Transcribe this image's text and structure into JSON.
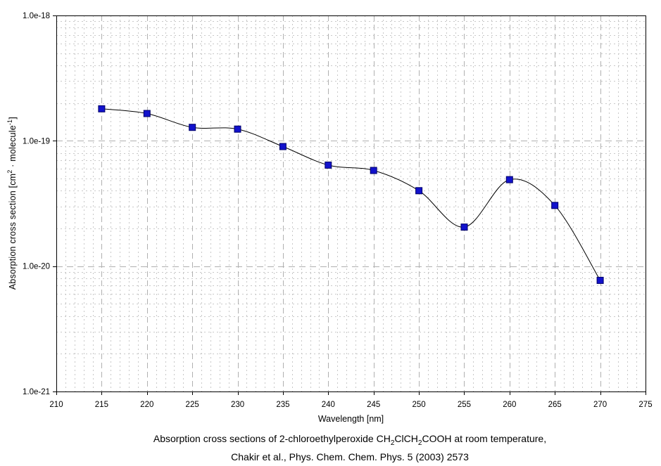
{
  "chart_data": {
    "type": "line",
    "title": "",
    "xlabel": "Wavelength [nm]",
    "ylabel_text": "Absorption cross section [cm2 · molecule-1]",
    "ylabel_segments": [
      {
        "t": "text",
        "v": "Absorption cross section [cm"
      },
      {
        "t": "sup",
        "v": "2"
      },
      {
        "t": "text",
        "v": " · molecule"
      },
      {
        "t": "sup",
        "v": "-1"
      },
      {
        "t": "text",
        "v": "]"
      }
    ],
    "x": [
      215,
      220,
      225,
      230,
      235,
      240,
      245,
      250,
      255,
      260,
      265,
      270
    ],
    "values": [
      1.8e-19,
      1.65e-19,
      1.28e-19,
      1.24e-19,
      9e-20,
      6.4e-20,
      5.8e-20,
      4e-20,
      2.05e-20,
      4.9e-20,
      3.05e-20,
      7.7e-21
    ],
    "xlim": [
      210,
      275
    ],
    "x_tick_step": 5,
    "x_tick_labels": [
      "210",
      "215",
      "220",
      "225",
      "230",
      "235",
      "240",
      "245",
      "250",
      "255",
      "260",
      "265",
      "270",
      "275"
    ],
    "ylim": [
      1e-21,
      1e-18
    ],
    "y_scale": "log",
    "y_ticks": [
      {
        "v": 1e-18,
        "label": "1.0e-18"
      },
      {
        "v": 1e-19,
        "label": "1.0e-19"
      },
      {
        "v": 1e-20,
        "label": "1.0e-20"
      },
      {
        "v": 1e-21,
        "label": "1.0e-21"
      }
    ],
    "grid": {
      "major": "dashed",
      "minor": "dotted",
      "major_color": "#b0b0b0",
      "minor_color": "#c8c8c8"
    },
    "legend": "none",
    "marker": "square",
    "marker_color": "#1212cc",
    "marker_edge_color": "#000066",
    "line_color": "#000000",
    "axis_color": "#000000"
  },
  "caption": {
    "line1_text": "Absorption cross sections of 2-chloroethylperoxide CH2ClCH2COOH at room temperature,",
    "line1_segments": [
      {
        "t": "text",
        "v": "Absorption cross sections of 2-chloroethylperoxide CH"
      },
      {
        "t": "sub",
        "v": "2"
      },
      {
        "t": "text",
        "v": "ClCH"
      },
      {
        "t": "sub",
        "v": "2"
      },
      {
        "t": "text",
        "v": "COOH at room temperature,"
      }
    ],
    "line2": "Chakir et al., Phys. Chem. Chem. Phys. 5 (2003) 2573"
  }
}
